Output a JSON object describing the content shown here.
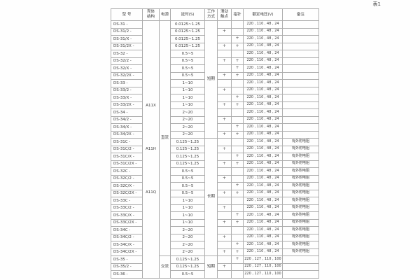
{
  "page_label": "表1",
  "table": {
    "headers": [
      "型  号",
      "壳体\n结构",
      "电源",
      "延时(S)",
      "工作\n方式",
      "滑动\n触点",
      "指针",
      "额定电压(V)",
      "备注"
    ],
    "shell_labels": [
      "A11X",
      "A11H",
      "A11Q"
    ],
    "power_groups": [
      {
        "label": "直流",
        "span": 32
      },
      {
        "label": "交流",
        "span": 3
      }
    ],
    "mode_groups": [
      {
        "label": "短期",
        "span": 16
      },
      {
        "label": "长期",
        "span": 16
      },
      {
        "label": "短期",
        "span": 3
      }
    ],
    "voltage_dc": "220 , 110 , 48 , 24",
    "voltage_ac": "220 , 127 , 110 , 100",
    "note_resistor": "有外附电阻",
    "rows": [
      {
        "model": "DS-31 -",
        "delay": "0.0125~1.25",
        "slide": "",
        "pointer": "",
        "voltage": "220 , 110 , 48 , 24",
        "note": ""
      },
      {
        "model": "DS-31/2 -",
        "delay": "0.0125~1.25",
        "slide": "+",
        "pointer": "",
        "voltage": "220 , 110 , 48 , 24",
        "note": ""
      },
      {
        "model": "DS-31/X -",
        "delay": "0.0125~1.25",
        "slide": "",
        "pointer": "+",
        "voltage": "220 , 110 , 48 , 24",
        "note": ""
      },
      {
        "model": "DS-31/2X -",
        "delay": "0.0125~1.25",
        "slide": "+",
        "pointer": "+",
        "voltage": "220 , 110 , 48 , 24",
        "note": ""
      },
      {
        "model": "DS-32 -",
        "delay": "0.5~5",
        "slide": "",
        "pointer": "",
        "voltage": "220 , 110 , 48 , 24",
        "note": ""
      },
      {
        "model": "DS-32/2 -",
        "delay": "0.5~5",
        "slide": "+",
        "pointer": "+",
        "voltage": "220 , 110 , 48 , 24",
        "note": ""
      },
      {
        "model": "DS-32/X -",
        "delay": "0.5~5",
        "slide": "",
        "pointer": "+",
        "voltage": "220 , 110 , 48 , 24",
        "note": ""
      },
      {
        "model": "DS-32/2X -",
        "delay": "0.5~5",
        "slide": "+",
        "pointer": "+",
        "voltage": "220 , 110 , 48 , 24",
        "note": ""
      },
      {
        "model": "DS-33 -",
        "delay": "1~10",
        "slide": "",
        "pointer": "",
        "voltage": "220 , 110 , 48 , 24",
        "note": ""
      },
      {
        "model": "DS-33/2 -",
        "delay": "1~10",
        "slide": "+",
        "pointer": "",
        "voltage": "220 , 110 , 48 , 24",
        "note": ""
      },
      {
        "model": "DS-33/X -",
        "delay": "1~10",
        "slide": "",
        "pointer": "+",
        "voltage": "220 , 110 , 48 , 24",
        "note": ""
      },
      {
        "model": "DS-33/2X -",
        "delay": "1~10",
        "slide": "+",
        "pointer": "+",
        "voltage": "220 , 110 , 48 , 24",
        "note": ""
      },
      {
        "model": "DS-34 -",
        "delay": "2~20",
        "slide": "",
        "pointer": "",
        "voltage": "220 , 110 , 48 , 24",
        "note": ""
      },
      {
        "model": "DS-34/2 -",
        "delay": "2~20",
        "slide": "+",
        "pointer": "",
        "voltage": "220 , 110 , 48 , 24",
        "note": ""
      },
      {
        "model": "DS-34/X -",
        "delay": "2~20",
        "slide": "",
        "pointer": "+",
        "voltage": "220 , 110 , 48 , 24",
        "note": ""
      },
      {
        "model": "DS-34/2X -",
        "delay": "2~20",
        "slide": "+",
        "pointer": "+",
        "voltage": "220 , 110 , 48 , 24",
        "note": ""
      },
      {
        "model": "DS-31C -",
        "delay": "0.125~1.25",
        "slide": "",
        "pointer": "",
        "voltage": "220 , 110 , 48 , 24",
        "note": "有外附电阻"
      },
      {
        "model": "DS-31C/2 -",
        "delay": "0.125~1.25",
        "slide": "+",
        "pointer": "",
        "voltage": "220 , 110 , 48 , 24",
        "note": "有外附电阻"
      },
      {
        "model": "DS-31C/X -",
        "delay": "0.125~1.25",
        "slide": "",
        "pointer": "+",
        "voltage": "220 , 110 , 48 , 24",
        "note": "有外附电阻"
      },
      {
        "model": "DS-31C/2X -",
        "delay": "0.125~1.25",
        "slide": "+",
        "pointer": "+",
        "voltage": "220 , 110 , 48 , 24",
        "note": "有外附电阻"
      },
      {
        "model": "DS-32C -",
        "delay": "0.5~5",
        "slide": "",
        "pointer": "",
        "voltage": "220 , 110 , 48 , 24",
        "note": "有外附电阻"
      },
      {
        "model": "DS-32C/2 -",
        "delay": "0.5~5",
        "slide": "+",
        "pointer": "",
        "voltage": "220 , 110 , 48 , 24",
        "note": "有外附电阻"
      },
      {
        "model": "DS-32C/X -",
        "delay": "0.5~5",
        "slide": "",
        "pointer": "+",
        "voltage": "220 , 110 , 48 , 24",
        "note": "有外附电阻"
      },
      {
        "model": "DS-32C/2X -",
        "delay": "0.5~5",
        "slide": "+",
        "pointer": "+",
        "voltage": "220 , 110 , 48 , 24",
        "note": "有外附电阻"
      },
      {
        "model": "DS-33C -",
        "delay": "1~10",
        "slide": "",
        "pointer": "",
        "voltage": "220 , 110 , 48 , 24",
        "note": "有外附电阻"
      },
      {
        "model": "DS-33C/2 -",
        "delay": "1~10",
        "slide": "+",
        "pointer": "",
        "voltage": "220 , 110 , 48 , 24",
        "note": "有外附电阻"
      },
      {
        "model": "DS-33C/X -",
        "delay": "1~10",
        "slide": "",
        "pointer": "+",
        "voltage": "220 , 110 , 48 , 24",
        "note": "有外附电阻"
      },
      {
        "model": "DS-33C/2X -",
        "delay": "1~10",
        "slide": "+",
        "pointer": "+",
        "voltage": "220 , 110 , 48 , 24",
        "note": "有外附电阻"
      },
      {
        "model": "DS-34C -",
        "delay": "2~20",
        "slide": "",
        "pointer": "",
        "voltage": "220 , 110 , 48 , 24",
        "note": "有外附电阻"
      },
      {
        "model": "DS-34C/2 -",
        "delay": "2~20",
        "slide": "+",
        "pointer": "",
        "voltage": "220 , 110 , 48 , 24",
        "note": "有外附电阻"
      },
      {
        "model": "DS-34C/X -",
        "delay": "2~20",
        "slide": "",
        "pointer": "+",
        "voltage": "220 , 110 , 48 , 24",
        "note": "有外附电阻"
      },
      {
        "model": "DS-34C/2X -",
        "delay": "2~20",
        "slide": "+",
        "pointer": "+",
        "voltage": "220 , 110 , 48 , 24",
        "note": "有外附电阻"
      },
      {
        "model": "DS-35 -",
        "delay": "0.125~1.25",
        "slide": "",
        "pointer": "+",
        "voltage": "220 , 127 , 110 , 100",
        "note": ""
      },
      {
        "model": "DS-35/2 -",
        "delay": "0.125~1.25",
        "slide": "+",
        "pointer": "",
        "voltage": "220 , 127 , 110 , 100",
        "note": ""
      },
      {
        "model": "DS-36 -",
        "delay": "0.5~5",
        "slide": "",
        "pointer": "",
        "voltage": "220 , 127 , 110 , 100",
        "note": ""
      }
    ]
  }
}
